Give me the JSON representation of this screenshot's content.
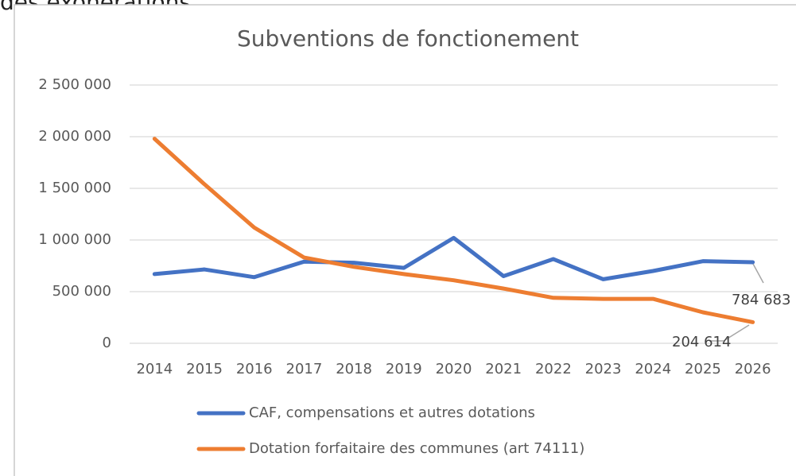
{
  "caption": "des exonérations",
  "chart_data": {
    "type": "line",
    "title": "Subventions de fonctionement",
    "categories": [
      "2014",
      "2015",
      "2016",
      "2017",
      "2018",
      "2019",
      "2020",
      "2021",
      "2022",
      "2023",
      "2024",
      "2025",
      "2026"
    ],
    "series": [
      {
        "name": "CAF, compensations et autres dotations",
        "color": "#4472c4",
        "values": [
          670000,
          715000,
          640000,
          790000,
          780000,
          730000,
          1020000,
          650000,
          815000,
          620000,
          700000,
          795000,
          784683
        ],
        "value_labels": [
          null,
          null,
          null,
          null,
          null,
          null,
          null,
          null,
          null,
          null,
          null,
          null,
          "784 683"
        ]
      },
      {
        "name": "Dotation forfaitaire des communes (art 74111)",
        "color": "#ed7d31",
        "values": [
          1980000,
          1540000,
          1120000,
          830000,
          740000,
          670000,
          610000,
          530000,
          440000,
          430000,
          430000,
          300000,
          204614
        ],
        "value_labels": [
          null,
          null,
          null,
          null,
          null,
          null,
          null,
          null,
          null,
          null,
          null,
          null,
          "204 614"
        ]
      }
    ],
    "ylim": [
      0,
      2500000
    ],
    "yticks": [
      0,
      {
        "value": 500000,
        "label": "500 000"
      },
      {
        "value": 1000000,
        "label": "1 000 000"
      },
      {
        "value": 1500000,
        "label": "1 500 000"
      },
      {
        "value": 2000000,
        "label": "2 000 000"
      },
      {
        "value": 2500000,
        "label": "2 500 000"
      }
    ],
    "grid": true,
    "legend": "bottom"
  }
}
